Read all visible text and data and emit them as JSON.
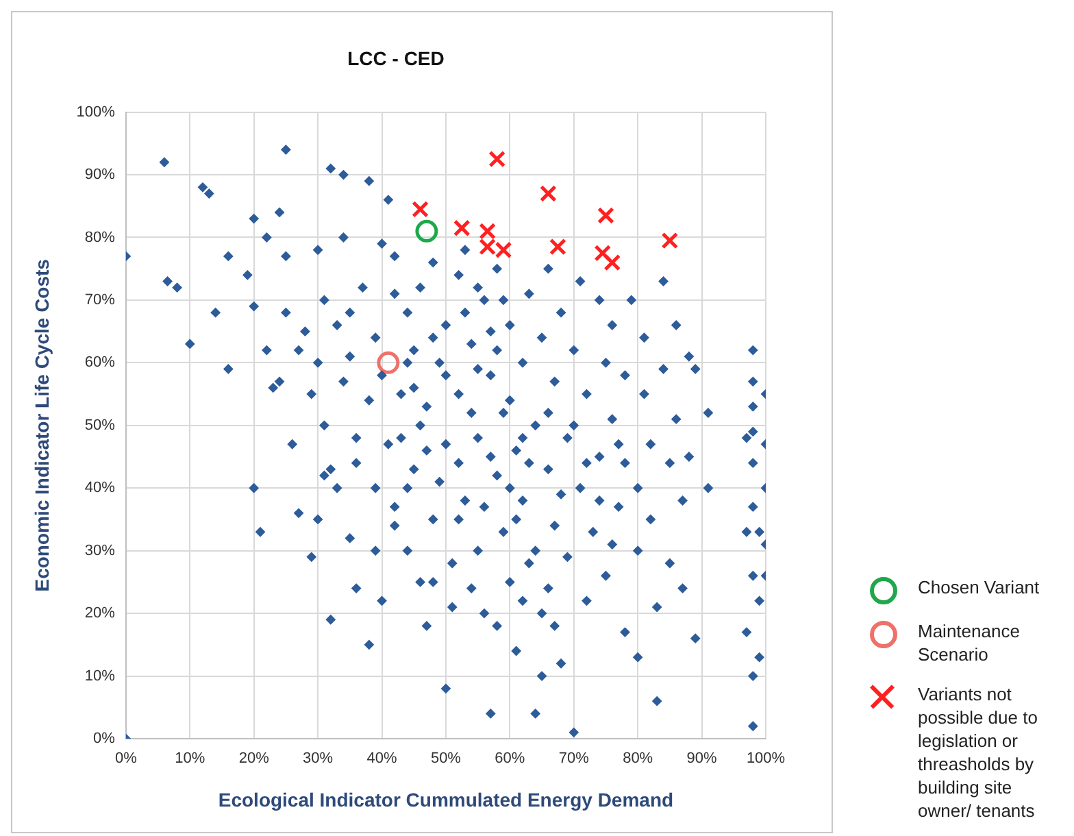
{
  "chart_data": {
    "type": "scatter",
    "title": "LCC - CED",
    "xlabel": "Ecological Indicator Cummulated Energy Demand",
    "ylabel": "Economic Indicator Life Cycle Costs",
    "xlim": [
      0,
      100
    ],
    "ylim": [
      0,
      100
    ],
    "xticks": [
      {
        "value": 0,
        "label": "0%"
      },
      {
        "value": 10,
        "label": "10%"
      },
      {
        "value": 20,
        "label": "20%"
      },
      {
        "value": 30,
        "label": "30%"
      },
      {
        "value": 40,
        "label": "40%"
      },
      {
        "value": 50,
        "label": "50%"
      },
      {
        "value": 60,
        "label": "60%"
      },
      {
        "value": 70,
        "label": "70%"
      },
      {
        "value": 80,
        "label": "80%"
      },
      {
        "value": 90,
        "label": "90%"
      },
      {
        "value": 100,
        "label": "100%"
      }
    ],
    "yticks": [
      {
        "value": 0,
        "label": "0%"
      },
      {
        "value": 10,
        "label": "10%"
      },
      {
        "value": 20,
        "label": "20%"
      },
      {
        "value": 30,
        "label": "30%"
      },
      {
        "value": 40,
        "label": "40%"
      },
      {
        "value": 50,
        "label": "50%"
      },
      {
        "value": 60,
        "label": "60%"
      },
      {
        "value": 70,
        "label": "70%"
      },
      {
        "value": 80,
        "label": "80%"
      },
      {
        "value": 90,
        "label": "90%"
      },
      {
        "value": 100,
        "label": "100%"
      }
    ],
    "grid": true,
    "legend": "right",
    "series": [
      {
        "color": "#2e5c9a",
        "marker": "diamond",
        "x": [
          0,
          0,
          6,
          6.5,
          8,
          10,
          12,
          13,
          14,
          16,
          16,
          19,
          20,
          20,
          20,
          21,
          22,
          23,
          24,
          25,
          25,
          26,
          27,
          28,
          29,
          30,
          30,
          31,
          32,
          32,
          32,
          34,
          34,
          35,
          35,
          36,
          37,
          38,
          38,
          39,
          39,
          40,
          40,
          41,
          41,
          42,
          42,
          43,
          44,
          44,
          45,
          45,
          46,
          46,
          47,
          47,
          48,
          48,
          49,
          50,
          50,
          50,
          51,
          51,
          52,
          52,
          53,
          53,
          54,
          55,
          55,
          56,
          56,
          57,
          57,
          58,
          58,
          59,
          59,
          60,
          60,
          61,
          61,
          62,
          62,
          63,
          63,
          64,
          64,
          65,
          65,
          66,
          66,
          67,
          67,
          68,
          68,
          69,
          69,
          70,
          70,
          71,
          71,
          72,
          72,
          73,
          74,
          74,
          75,
          75,
          76,
          76,
          77,
          77,
          78,
          78,
          79,
          80,
          80,
          80,
          81,
          81,
          82,
          82,
          83,
          83,
          84,
          84,
          85,
          85,
          86,
          86,
          87,
          87,
          88,
          88,
          89,
          89,
          91,
          91,
          98,
          98,
          98,
          98,
          98,
          98,
          97,
          98,
          98,
          99,
          99,
          100,
          100,
          100,
          100,
          99,
          97,
          97,
          98,
          100,
          45,
          47,
          49,
          50,
          52,
          54,
          56,
          58,
          60,
          62,
          63,
          66,
          68,
          70,
          72,
          74,
          76,
          78,
          52,
          55,
          57,
          59,
          61,
          64,
          66,
          43,
          46,
          48,
          40,
          38,
          36,
          34,
          33,
          31,
          29,
          27,
          25,
          24,
          22,
          30,
          35,
          42,
          44,
          53,
          55,
          57,
          60,
          67,
          65,
          62,
          58,
          54,
          48,
          44,
          42,
          39,
          36,
          33,
          31
        ],
        "values": [
          77,
          0,
          92,
          73,
          72,
          63,
          88,
          87,
          68,
          77,
          59,
          74,
          83,
          40,
          69,
          33,
          80,
          56,
          84,
          94,
          77,
          47,
          36,
          65,
          29,
          35,
          78,
          50,
          91,
          19,
          43,
          90,
          80,
          32,
          61,
          24,
          72,
          15,
          89,
          64,
          30,
          79,
          22,
          86,
          47,
          77,
          37,
          55,
          68,
          30,
          62,
          43,
          25,
          72,
          18,
          53,
          76,
          35,
          60,
          8,
          47,
          66,
          28,
          21,
          74,
          55,
          38,
          78,
          63,
          48,
          30,
          70,
          20,
          4,
          58,
          42,
          75,
          52,
          33,
          66,
          25,
          46,
          14,
          60,
          38,
          71,
          28,
          50,
          4,
          20,
          64,
          43,
          75,
          34,
          57,
          12,
          68,
          29,
          48,
          1,
          62,
          40,
          73,
          22,
          55,
          33,
          70,
          45,
          60,
          26,
          51,
          66,
          37,
          47,
          58,
          17,
          70,
          40,
          30,
          13,
          55,
          64,
          47,
          35,
          6,
          21,
          59,
          73,
          44,
          28,
          66,
          51,
          38,
          24,
          61,
          45,
          16,
          59,
          52,
          40,
          62,
          57,
          49,
          44,
          37,
          26,
          17,
          10,
          2,
          33,
          22,
          55,
          47,
          31,
          26,
          13,
          33,
          48,
          53,
          40,
          56,
          46,
          41,
          58,
          44,
          52,
          37,
          62,
          54,
          48,
          44,
          52,
          39,
          50,
          44,
          38,
          31,
          44,
          35,
          59,
          65,
          70,
          35,
          30,
          24,
          48,
          50,
          64,
          58,
          54,
          48,
          57,
          66,
          70,
          55,
          62,
          68,
          57,
          62,
          60,
          68,
          71,
          60,
          68,
          72,
          45,
          40,
          18,
          10,
          22,
          18,
          24,
          25,
          40,
          34,
          40,
          44,
          40,
          42
        ]
      },
      {
        "name": "Chosen Variant",
        "color": "#1fa84b",
        "marker": "circle",
        "x": [
          47
        ],
        "values": [
          81
        ]
      },
      {
        "name": "Maintenance Scenario",
        "color": "#f0706a",
        "marker": "circle",
        "x": [
          41
        ],
        "values": [
          60
        ]
      },
      {
        "name": "Variants not possible due to legislation or threasholds by building site owner/ tenants",
        "color": "#ff2020",
        "marker": "cross",
        "x": [
          46,
          52.5,
          56.5,
          58,
          56.5,
          59,
          66,
          67.5,
          75,
          74.5,
          76,
          85
        ],
        "values": [
          84.5,
          81.5,
          81,
          92.5,
          78.5,
          78,
          87,
          78.5,
          83.5,
          77.5,
          76,
          79.5
        ]
      }
    ]
  }
}
